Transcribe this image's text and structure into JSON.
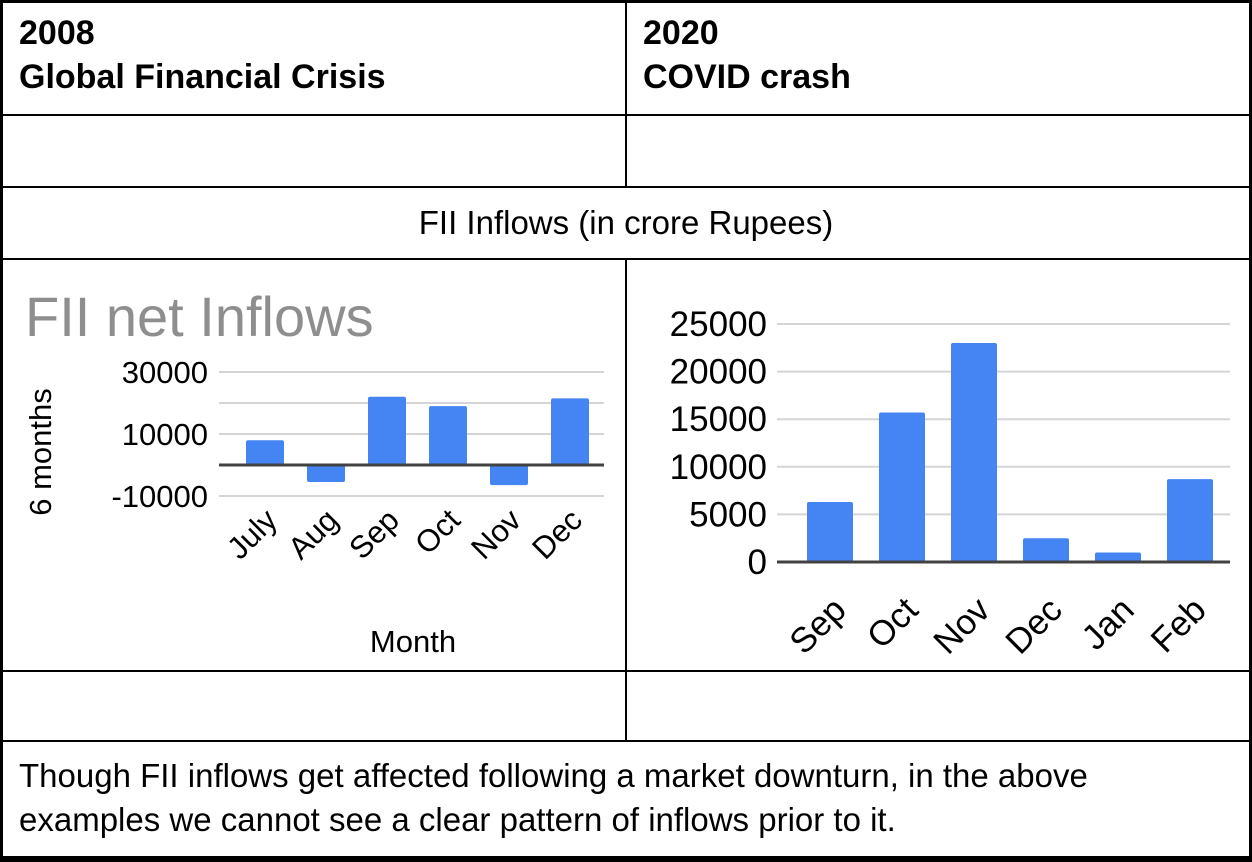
{
  "table": {
    "header_left": {
      "line1": "2008",
      "line2": "Global Financial Crisis"
    },
    "header_right": {
      "line1": "2020",
      "line2": "COVID crash"
    },
    "merged_title": "FII Inflows (in crore Rupees)",
    "caption": "Though FII inflows get affected following a market downturn, in the above examples we cannot see a clear pattern of inflows prior to it."
  },
  "colors": {
    "bar": "#4484f3",
    "chart_title": "#8e8e8e",
    "gridline": "#d5d5d5",
    "axis_line": "#424242",
    "tick_text": "#000000",
    "table_border": "#000000"
  },
  "chart_data": [
    {
      "id": "chart-2008",
      "type": "bar",
      "title": "FII net Inflows",
      "xlabel": "Month",
      "ylabel": "6 months",
      "categories": [
        "July",
        "Aug",
        "Sep",
        "Oct",
        "Nov",
        "Dec"
      ],
      "values": [
        8000,
        -5500,
        22000,
        19000,
        -6500,
        21500
      ],
      "ylim": [
        -10000,
        30000
      ],
      "ytick_step": 10000,
      "yticks_shown": [
        30000,
        10000,
        -10000
      ],
      "grid": true,
      "legend": "none"
    },
    {
      "id": "chart-2020",
      "type": "bar",
      "title": "",
      "xlabel": "",
      "ylabel": "",
      "categories": [
        "Sep",
        "Oct",
        "Nov",
        "Dec",
        "Jan",
        "Feb"
      ],
      "values": [
        6300,
        15700,
        23000,
        2500,
        1000,
        8700
      ],
      "ylim": [
        0,
        25000
      ],
      "ytick_step": 5000,
      "yticks_shown": [
        25000,
        20000,
        15000,
        10000,
        5000,
        0
      ],
      "grid": true,
      "legend": "none"
    }
  ]
}
